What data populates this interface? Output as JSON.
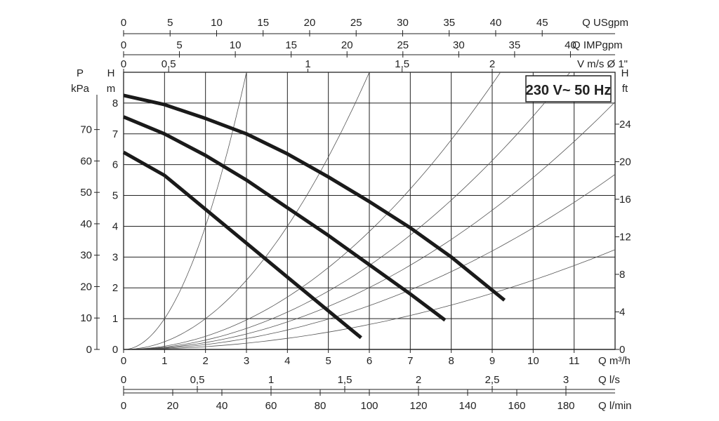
{
  "chart_data": {
    "type": "line",
    "title": "",
    "legend_box": "230 V~ 50 Hz",
    "x_axes": {
      "q_usgpm": {
        "label": "Q USgpm",
        "ticks": [
          0,
          5,
          10,
          15,
          20,
          25,
          30,
          35,
          40,
          45
        ],
        "tick_labels": [
          "0",
          "5",
          "10",
          "15",
          "20",
          "25",
          "30",
          "35",
          "40",
          "45"
        ],
        "m3h_per_unit": 0.227125
      },
      "q_impgpm": {
        "label": "Q IMPgpm",
        "ticks": [
          0,
          5,
          10,
          15,
          20,
          25,
          30,
          35,
          40
        ],
        "tick_labels": [
          "0",
          "5",
          "10",
          "15",
          "20",
          "25",
          "30",
          "35",
          "40"
        ],
        "m3h_per_unit": 0.272766
      },
      "v_ms": {
        "label": "V m/s Ø 1\"",
        "ticks": [
          0,
          0.5,
          1,
          1.5,
          2
        ],
        "tick_labels": [
          "0",
          "0,5",
          "1",
          "1,5",
          "2"
        ],
        "m3h_at_tick": [
          0,
          1.1,
          4.5,
          6.8,
          9.0
        ]
      },
      "q_m3h": {
        "label": "Q m³/h",
        "range": [
          0,
          12
        ],
        "ticks": [
          0,
          1,
          2,
          3,
          4,
          5,
          6,
          7,
          8,
          9,
          10,
          11
        ],
        "tick_labels": [
          "0",
          "1",
          "2",
          "3",
          "4",
          "5",
          "6",
          "7",
          "8",
          "9",
          "10",
          "11"
        ]
      },
      "q_ls": {
        "label": "Q l/s",
        "ticks": [
          0,
          0.5,
          1,
          1.5,
          2,
          2.5,
          3
        ],
        "tick_labels": [
          "0",
          "0,5",
          "1",
          "1,5",
          "2",
          "2,5",
          "3"
        ],
        "m3h_per_unit": 3.6
      },
      "q_lmin": {
        "label": "Q l/min",
        "ticks": [
          0,
          20,
          40,
          60,
          80,
          100,
          120,
          140,
          160,
          180
        ],
        "tick_labels": [
          "0",
          "20",
          "40",
          "60",
          "80",
          "100",
          "120",
          "140",
          "160",
          "180"
        ],
        "m3h_per_unit": 0.06
      }
    },
    "y_axes": {
      "p_kpa": {
        "label_top": "P",
        "label": "kPa",
        "ticks": [
          0,
          10,
          20,
          30,
          40,
          50,
          60,
          70
        ],
        "tick_labels": [
          "0",
          "10",
          "20",
          "30",
          "40",
          "50",
          "60",
          "70"
        ],
        "m_per_unit": 0.102
      },
      "h_m": {
        "label_top": "H",
        "label": "m",
        "range": [
          0,
          9
        ],
        "ticks": [
          0,
          1,
          2,
          3,
          4,
          5,
          6,
          7,
          8
        ],
        "tick_labels": [
          "0",
          "1",
          "2",
          "3",
          "4",
          "5",
          "6",
          "7",
          "8"
        ]
      },
      "h_ft": {
        "label_top": "H",
        "label": "ft",
        "ticks": [
          0,
          4,
          8,
          12,
          16,
          20,
          24
        ],
        "tick_labels": [
          "0",
          "4",
          "8",
          "12",
          "16",
          "20",
          "24"
        ],
        "m_per_unit": 0.3048
      }
    },
    "series": [
      {
        "x": [
          0,
          1,
          2,
          3,
          4,
          5,
          5.8
        ],
        "y": [
          6.4,
          5.65,
          4.55,
          3.45,
          2.35,
          1.25,
          0.38
        ]
      },
      {
        "x": [
          0,
          1,
          2,
          3,
          4,
          5,
          6,
          7,
          7.85
        ],
        "y": [
          7.55,
          7.0,
          6.3,
          5.5,
          4.6,
          3.7,
          2.75,
          1.8,
          0.95
        ]
      },
      {
        "x": [
          0,
          1,
          2,
          3,
          4,
          5,
          6,
          7,
          8,
          9.3
        ],
        "y": [
          8.25,
          7.95,
          7.5,
          7.0,
          6.35,
          5.6,
          4.8,
          3.95,
          3.0,
          1.6
        ]
      }
    ],
    "system_curves_m3h_at_top_of_grid": [
      3.0,
      6.0,
      9.2,
      10.9,
      12.7,
      15.1,
      20.0
    ],
    "grid": true
  }
}
